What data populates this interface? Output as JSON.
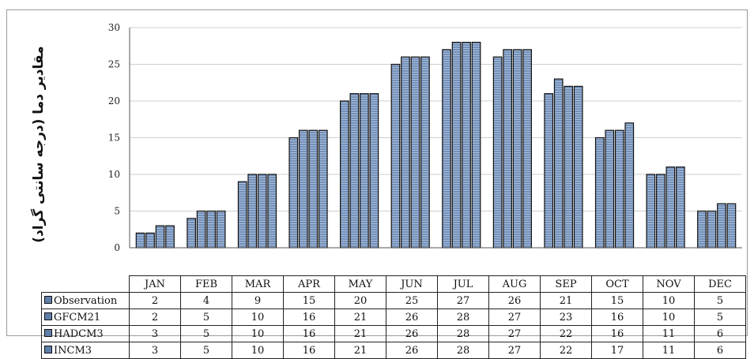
{
  "chart_data": {
    "type": "bar",
    "ylabel": "مقادیر دما (درجه سانتی گراد)",
    "ylim": [
      0,
      30
    ],
    "yticks": [
      0,
      5,
      10,
      15,
      20,
      25,
      30
    ],
    "grid": true,
    "categories": [
      "JAN",
      "FEB",
      "MAR",
      "APR",
      "MAY",
      "JUN",
      "JUL",
      "AUG",
      "SEP",
      "OCT",
      "NOV",
      "DEC"
    ],
    "series": [
      {
        "name": "Observation",
        "values": [
          2,
          4,
          9,
          15,
          20,
          25,
          27,
          26,
          21,
          15,
          10,
          5
        ],
        "display": [
          "2",
          "4",
          "9",
          "15",
          "20",
          "25",
          "27",
          "26",
          "21",
          "15",
          "10",
          "5"
        ]
      },
      {
        "name": "GFCM21",
        "values": [
          2,
          5,
          10,
          16,
          21,
          26,
          28,
          27,
          23,
          16,
          10,
          5
        ],
        "display": [
          "2",
          "5",
          "10",
          "16",
          "21",
          "26",
          "28",
          "27",
          "23",
          "16",
          "10",
          "5"
        ]
      },
      {
        "name": "HADCM3",
        "values": [
          3,
          5,
          10,
          16,
          21,
          26,
          28,
          27,
          22,
          16,
          11,
          6
        ],
        "display": [
          "3",
          "5",
          "10",
          "16",
          "21",
          "26",
          "28",
          "27",
          "22",
          "16",
          "11",
          "6"
        ]
      },
      {
        "name": "INCM3",
        "values": [
          3,
          5,
          10,
          16,
          21,
          26,
          28,
          27,
          22,
          17,
          11,
          6
        ],
        "display": [
          "3",
          "5",
          "10",
          "16",
          "21",
          "26",
          "28",
          "27",
          "22",
          "17",
          "11",
          "6"
        ]
      }
    ],
    "legend": "data-table-below-chart"
  },
  "colors": {
    "bar_fill": "#6a88b4",
    "bar_edge": "#111111",
    "grid": "#cfcfcf",
    "axis": "#555555"
  }
}
